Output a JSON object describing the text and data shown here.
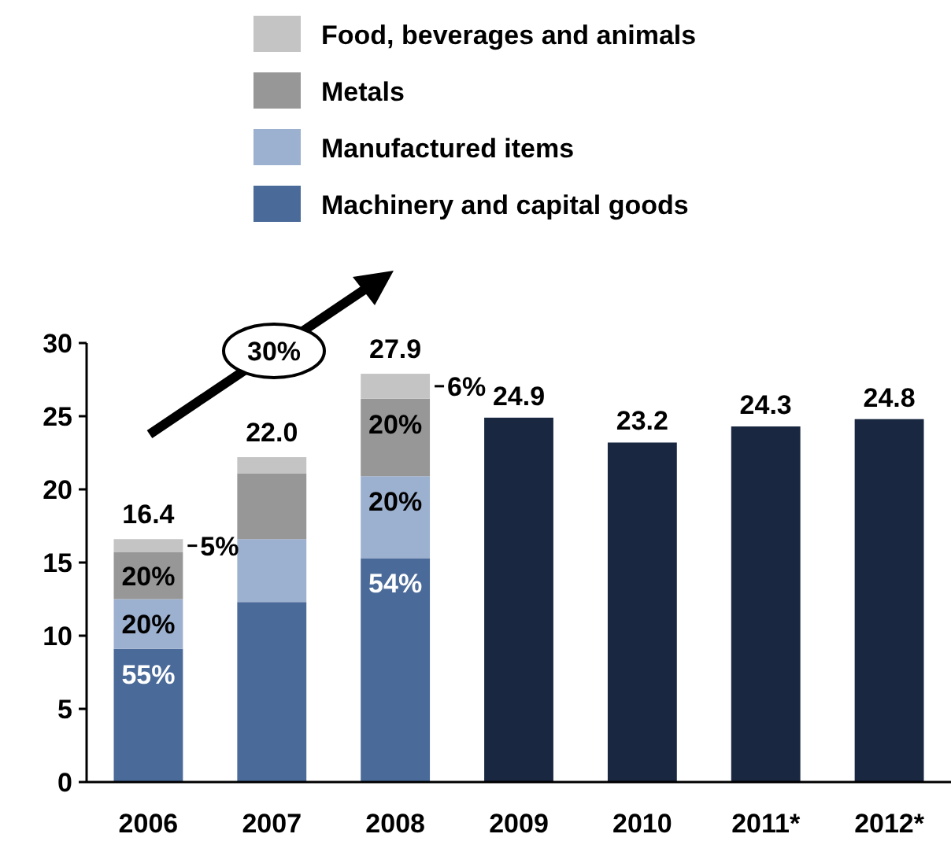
{
  "chart_data": {
    "type": "bar",
    "stacked": true,
    "categories": [
      "2006",
      "2007",
      "2008",
      "2009",
      "2010",
      "2011*",
      "2012*"
    ],
    "series": [
      {
        "name": "Machinery and capital goods",
        "color": "#4a6a99",
        "values": [
          9.1,
          12.3,
          15.3,
          null,
          null,
          null,
          null
        ]
      },
      {
        "name": "Manufactured items",
        "color": "#9cb0cf",
        "values": [
          3.4,
          4.3,
          5.6,
          null,
          null,
          null,
          null
        ]
      },
      {
        "name": "Metals",
        "color": "#979797",
        "values": [
          3.2,
          4.5,
          5.3,
          null,
          null,
          null,
          null
        ]
      },
      {
        "name": "Food, beverages and animals",
        "color": "#c4c4c4",
        "values": [
          0.9,
          1.1,
          1.7,
          null,
          null,
          null,
          null
        ]
      },
      {
        "color": "#1a2741",
        "values": [
          null,
          null,
          null,
          24.9,
          23.2,
          24.3,
          24.8
        ],
        "value_labels": [
          null,
          null,
          null,
          "24.9",
          "23.2",
          "24.3",
          "24.8"
        ]
      }
    ],
    "totals": [
      "16.4",
      "22.0",
      "27.9",
      null,
      null,
      null,
      null
    ],
    "ylim": [
      0,
      30
    ],
    "yticks": [
      0,
      5,
      10,
      15,
      20,
      25,
      30
    ],
    "grid": false,
    "legend": "top",
    "annotations": [
      "30%",
      {
        "text": "55%",
        "x": "2006",
        "y": 9.1
      },
      {
        "text": "20%",
        "x": "2006",
        "y": 12.5
      },
      {
        "text": "20%",
        "x": "2006",
        "y": 15.7
      },
      {
        "text": "5%",
        "x": "2006",
        "y": 16.6
      },
      {
        "text": "54%",
        "x": "2008",
        "y": 15.3
      },
      {
        "text": "20%",
        "x": "2008",
        "y": 20.9
      },
      {
        "text": "20%",
        "x": "2008",
        "y": 26.2
      },
      {
        "text": "6%",
        "x": "2008",
        "y": 27.9
      }
    ]
  }
}
